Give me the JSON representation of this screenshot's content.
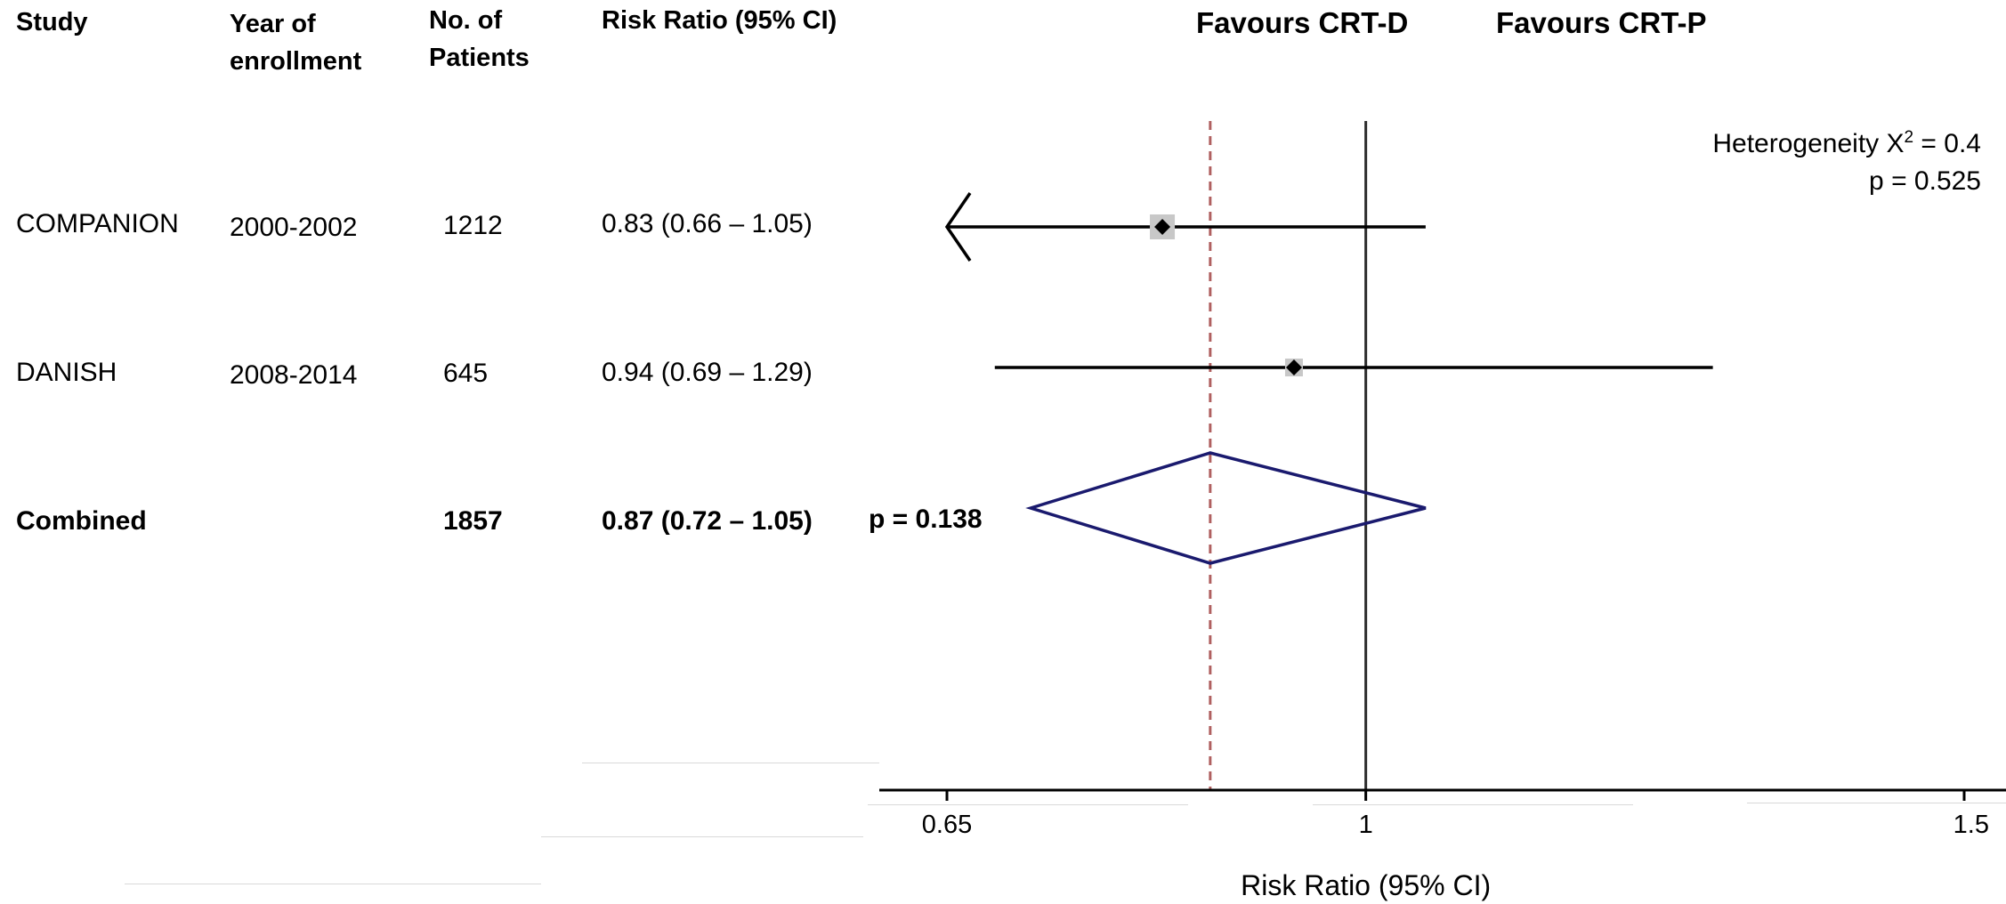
{
  "headers": {
    "study": "Study",
    "year_line1": "Year of",
    "year_line2": "enrollment",
    "patients_line1": "No. of",
    "patients_line2": "Patients",
    "risk_ratio": "Risk Ratio (95% CI)"
  },
  "favours": {
    "left": "Favours CRT-D",
    "right": "Favours CRT-P"
  },
  "heterogeneity": {
    "label": "Heterogeneity X",
    "superscript": "2",
    "chi2": " = 0.4",
    "p": "p = 0.525"
  },
  "rows": [
    {
      "study": "COMPANION",
      "year": "2000-2002",
      "patients": "1212",
      "ci_text": "0.83 (0.66 – 1.05)"
    },
    {
      "study": "DANISH",
      "year": "2008-2014",
      "patients": "645",
      "ci_text": "0.94 (0.69 – 1.29)"
    }
  ],
  "combined": {
    "study": "Combined",
    "patients": "1857",
    "ci_text": "0.87 (0.72 – 1.05)",
    "p": "p = 0.138"
  },
  "chart_data": {
    "type": "forest",
    "xlabel": "Risk Ratio (95% CI)",
    "xlim": [
      0.65,
      1.5
    ],
    "xticks": [
      0.65,
      1,
      1.5
    ],
    "xtick_labels": [
      "0.65",
      "1",
      "1.5"
    ],
    "reference_line": 1,
    "pooled_line": 0.87,
    "studies": [
      {
        "name": "COMPANION",
        "rr": 0.83,
        "lower": 0.66,
        "upper": 1.05,
        "lower_truncated": true
      },
      {
        "name": "DANISH",
        "rr": 0.94,
        "lower": 0.69,
        "upper": 1.29,
        "lower_truncated": false
      }
    ],
    "pooled": {
      "name": "Combined",
      "rr": 0.87,
      "lower": 0.72,
      "upper": 1.05
    },
    "colors": {
      "diamond": "#1a1a6e",
      "pooled_line": "#b06060",
      "ci_line": "#000000",
      "square": "#c8c8c8"
    }
  }
}
